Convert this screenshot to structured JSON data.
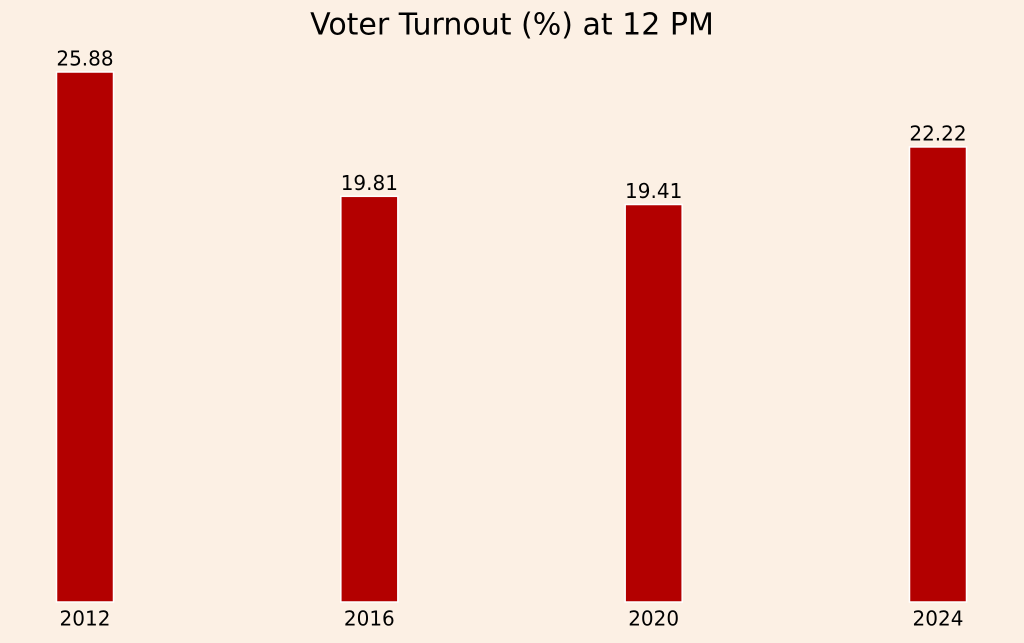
{
  "chart_data": {
    "type": "bar",
    "title": "Voter Turnout (%) at 12 PM",
    "categories": [
      "2012",
      "2016",
      "2020",
      "2024"
    ],
    "values": [
      25.88,
      19.81,
      19.41,
      22.22
    ],
    "color": "#b30000"
  }
}
